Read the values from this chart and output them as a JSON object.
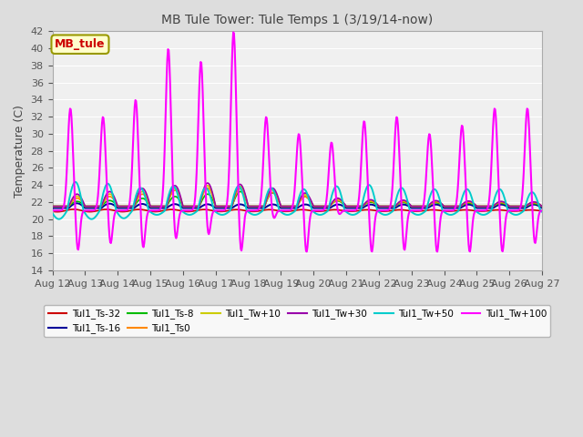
{
  "title": "MB Tule Tower: Tule Temps 1 (3/19/14-now)",
  "ylabel": "Temperature (C)",
  "ylim": [
    14,
    42
  ],
  "xlim": [
    0,
    15
  ],
  "yticks": [
    14,
    16,
    18,
    20,
    22,
    24,
    26,
    28,
    30,
    32,
    34,
    36,
    38,
    40,
    42
  ],
  "xtick_labels": [
    "Aug 12",
    "Aug 13",
    "Aug 14",
    "Aug 15",
    "Aug 16",
    "Aug 17",
    "Aug 18",
    "Aug 19",
    "Aug 20",
    "Aug 21",
    "Aug 22",
    "Aug 23",
    "Aug 24",
    "Aug 25",
    "Aug 26",
    "Aug 27"
  ],
  "bg_color": "#dddddd",
  "plot_bg": "#f0f0f0",
  "grid_color": "#ffffff",
  "legend_box_color": "#ffffcc",
  "legend_box_edge": "#999900",
  "series_info": [
    {
      "label": "Tul1_Ts-32",
      "color": "#cc0000",
      "lw": 1.2,
      "zorder": 2
    },
    {
      "label": "Tul1_Ts-16",
      "color": "#000099",
      "lw": 1.4,
      "zorder": 3
    },
    {
      "label": "Tul1_Ts-8",
      "color": "#00bb00",
      "lw": 1.2,
      "zorder": 4
    },
    {
      "label": "Tul1_Ts0",
      "color": "#ff8800",
      "lw": 1.2,
      "zorder": 5
    },
    {
      "label": "Tul1_Tw+10",
      "color": "#cccc00",
      "lw": 1.2,
      "zorder": 6
    },
    {
      "label": "Tul1_Tw+30",
      "color": "#9900aa",
      "lw": 1.2,
      "zorder": 7
    },
    {
      "label": "Tul1_Tw+50",
      "color": "#00cccc",
      "lw": 1.4,
      "zorder": 8
    },
    {
      "label": "Tul1_Tw+100",
      "color": "#ff00ff",
      "lw": 1.5,
      "zorder": 9
    }
  ],
  "legend_entries": [
    {
      "label": "Tul1_Ts-32",
      "color": "#cc0000"
    },
    {
      "label": "Tul1_Ts-16",
      "color": "#000099"
    },
    {
      "label": "Tul1_Ts-8",
      "color": "#00bb00"
    },
    {
      "label": "Tul1_Ts0",
      "color": "#ff8800"
    },
    {
      "label": "Tul1_Tw+10",
      "color": "#cccc00"
    },
    {
      "label": "Tul1_Tw+30",
      "color": "#9900aa"
    },
    {
      "label": "Tul1_Tw+50",
      "color": "#00cccc"
    },
    {
      "label": "Tul1_Tw+100",
      "color": "#ff00ff"
    }
  ]
}
